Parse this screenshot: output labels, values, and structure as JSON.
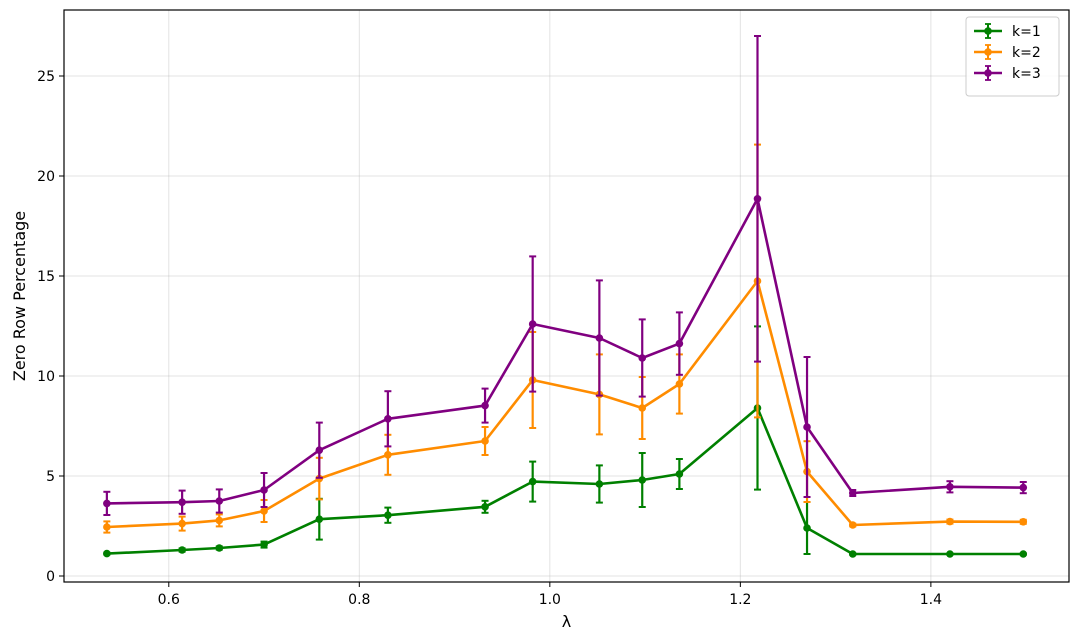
{
  "chart_data": {
    "type": "line",
    "title": "",
    "xlabel": "λ",
    "ylabel": "Zero Row Percentage",
    "xlim": [
      0.49,
      1.545
    ],
    "ylim": [
      -0.3,
      28.3
    ],
    "xticks": [
      0.6,
      0.8,
      1.0,
      1.2,
      1.4
    ],
    "xtick_labels": [
      "0.6",
      "0.8",
      "1.0",
      "1.2",
      "1.4"
    ],
    "yticks": [
      0,
      5,
      10,
      15,
      20,
      25
    ],
    "ytick_labels": [
      "0",
      "5",
      "10",
      "15",
      "20",
      "25"
    ],
    "grid": true,
    "legend_position": "top-right",
    "error_bars": true,
    "x": [
      0.535,
      0.614,
      0.653,
      0.7,
      0.758,
      0.83,
      0.932,
      0.982,
      1.052,
      1.097,
      1.136,
      1.218,
      1.27,
      1.318,
      1.42,
      1.497
    ],
    "series": [
      {
        "name": "k=1",
        "color": "#008000",
        "values": [
          1.12,
          1.3,
          1.4,
          1.57,
          2.84,
          3.04,
          3.46,
          4.72,
          4.6,
          4.8,
          5.1,
          8.4,
          2.4,
          1.1,
          1.1,
          1.1
        ],
        "errors": [
          0.05,
          0.08,
          0.08,
          0.15,
          1.02,
          0.38,
          0.3,
          1.0,
          0.93,
          1.35,
          0.75,
          4.08,
          1.3,
          0.03,
          0.03,
          0.03
        ]
      },
      {
        "name": "k=2",
        "color": "#ff8c00",
        "values": [
          2.45,
          2.62,
          2.78,
          3.25,
          4.87,
          6.06,
          6.75,
          9.8,
          9.08,
          8.4,
          9.6,
          14.75,
          5.22,
          2.55,
          2.72,
          2.71
        ],
        "errors": [
          0.28,
          0.35,
          0.3,
          0.55,
          1.04,
          1.0,
          0.7,
          2.4,
          2.0,
          1.55,
          1.48,
          6.82,
          1.52,
          0.07,
          0.1,
          0.1
        ]
      },
      {
        "name": "k=3",
        "color": "#800080",
        "values": [
          3.63,
          3.69,
          3.75,
          4.3,
          6.29,
          7.86,
          8.52,
          12.6,
          11.9,
          10.9,
          11.62,
          18.86,
          7.45,
          4.15,
          4.46,
          4.42
        ],
        "errors": [
          0.58,
          0.58,
          0.58,
          0.85,
          1.38,
          1.38,
          0.85,
          3.38,
          2.88,
          1.93,
          1.56,
          8.14,
          3.5,
          0.15,
          0.28,
          0.28
        ]
      }
    ]
  }
}
